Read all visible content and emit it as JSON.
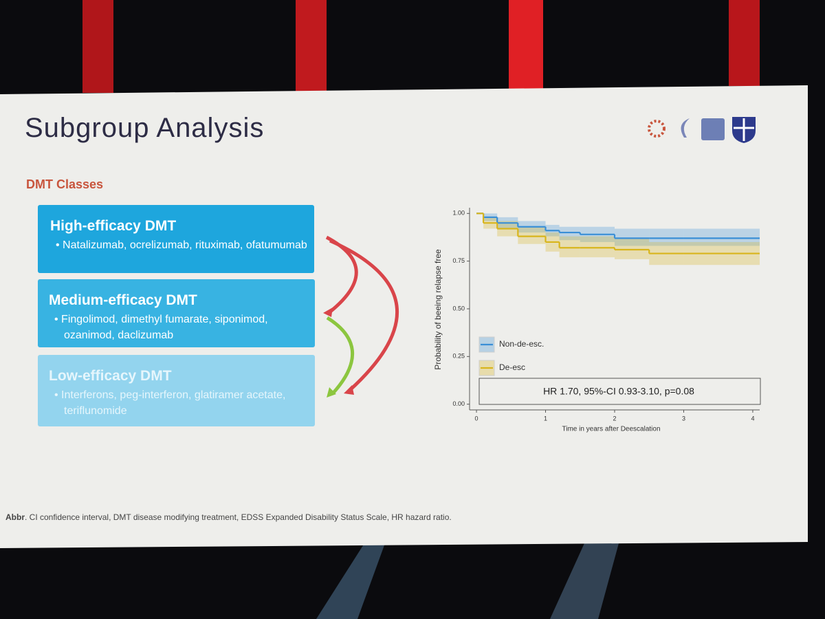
{
  "slide": {
    "title": "Subgroup Analysis",
    "section": "DMT Classes",
    "boxes": [
      {
        "heading": "High-efficacy DMT",
        "items": "Natalizumab, ocrelizumab, rituximab, ofatumumab"
      },
      {
        "heading": "Medium-efficacy DMT",
        "items": "Fingolimod, dimethyl fumarate, siponimod, ozanimod, daclizumab"
      },
      {
        "heading": "Low-efficacy DMT",
        "items": "Interferons, peg-interferon, glatiramer acetate, teriflunomide"
      }
    ],
    "footer": {
      "label": "Abbr",
      "text": ". CI confidence interval, DMT disease modifying treatment, EDSS Expanded Disability Status Scale, HR hazard ratio."
    }
  },
  "chart_data": {
    "type": "line",
    "xlabel": "Time in years after Deescalation",
    "ylabel": "Probability of beeing relapse free",
    "annotation": "HR 1.70, 95%-CI 0.93-3.10, p=0.08",
    "x": [
      0,
      0.1,
      0.3,
      0.6,
      1.0,
      1.2,
      1.5,
      2.0,
      2.5,
      3.0,
      4.1
    ],
    "series": [
      {
        "name": "Non-de-esc.",
        "color": "#3a8fd6",
        "values": [
          1.0,
          0.98,
          0.95,
          0.93,
          0.91,
          0.9,
          0.89,
          0.87,
          0.87,
          0.87,
          0.87
        ],
        "lower": [
          1.0,
          0.96,
          0.92,
          0.9,
          0.88,
          0.86,
          0.85,
          0.83,
          0.83,
          0.83,
          0.83
        ],
        "upper": [
          1.0,
          1.0,
          0.98,
          0.96,
          0.94,
          0.93,
          0.93,
          0.92,
          0.92,
          0.92,
          0.92
        ]
      },
      {
        "name": "De-esc",
        "color": "#d8b51c",
        "values": [
          1.0,
          0.95,
          0.92,
          0.88,
          0.85,
          0.82,
          0.82,
          0.81,
          0.79,
          0.79,
          0.79
        ],
        "lower": [
          1.0,
          0.92,
          0.88,
          0.84,
          0.8,
          0.77,
          0.77,
          0.76,
          0.73,
          0.73,
          0.73
        ],
        "upper": [
          1.0,
          0.98,
          0.96,
          0.93,
          0.9,
          0.88,
          0.88,
          0.87,
          0.85,
          0.85,
          0.85
        ]
      }
    ],
    "xlim": [
      -0.1,
      4.1
    ],
    "ylim": [
      -0.03,
      1.03
    ],
    "xticks": [
      0,
      1,
      2,
      3,
      4
    ],
    "yticks": [
      {
        "value": 0,
        "label": "0.00"
      },
      {
        "value": 0.25,
        "label": "0.25"
      },
      {
        "value": 0.5,
        "label": "0.50"
      },
      {
        "value": 0.75,
        "label": "0.75"
      },
      {
        "value": 1,
        "label": "1.00"
      }
    ],
    "grid": false
  }
}
